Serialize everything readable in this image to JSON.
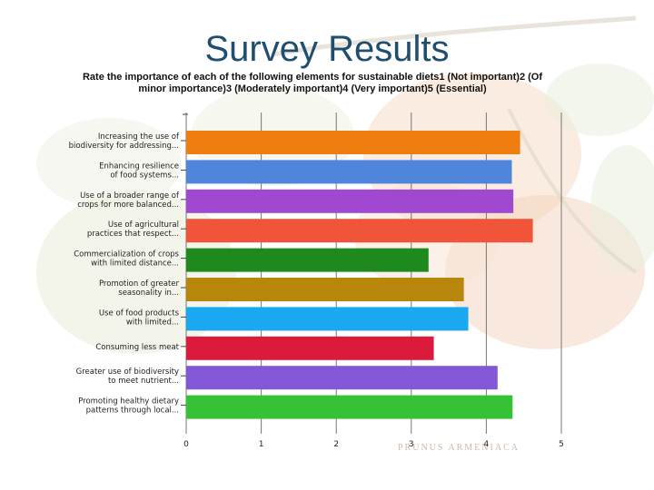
{
  "slide": {
    "title": "Survey Results",
    "watermark": "PRUNUS ARMENIACA"
  },
  "colors": {
    "title": "#1f4e6e",
    "bars": [
      "#f07d10",
      "#4f86dc",
      "#a148d0",
      "#f0553a",
      "#1e8a1e",
      "#b8860b",
      "#1aa9f0",
      "#dc1a3c",
      "#8457d6",
      "#35c235"
    ]
  },
  "chart_data": {
    "type": "bar",
    "orientation": "horizontal",
    "title": "Rate the importance of each of the following elements for  sustainable diets1 (Not important)2 (Of minor importance)3 (Moderately important)4 (Very important)5 (Essential)",
    "categories": [
      [
        "Increasing the use of",
        "biodiversity for addressing..."
      ],
      [
        "Enhancing resilience",
        "of food systems..."
      ],
      [
        "Use of a broader range of",
        "crops for more balanced..."
      ],
      [
        "Use of agricultural",
        "practices that respect..."
      ],
      [
        "Commercialization of crops",
        "with limited distance..."
      ],
      [
        "Promotion of greater",
        "seasonality in..."
      ],
      [
        "Use of food products",
        "with limited..."
      ],
      [
        "Consuming less meat"
      ],
      [
        "Greater use of biodiversity",
        "to meet nutrient..."
      ],
      [
        "Promoting healthy dietary",
        "patterns through local..."
      ]
    ],
    "values": [
      4.45,
      4.34,
      4.36,
      4.62,
      3.23,
      3.7,
      3.76,
      3.3,
      4.15,
      4.35
    ],
    "xlim": [
      0,
      5
    ],
    "xticks": [
      "0",
      "1",
      "2",
      "3",
      "4",
      "5"
    ],
    "grid": "vertical"
  }
}
